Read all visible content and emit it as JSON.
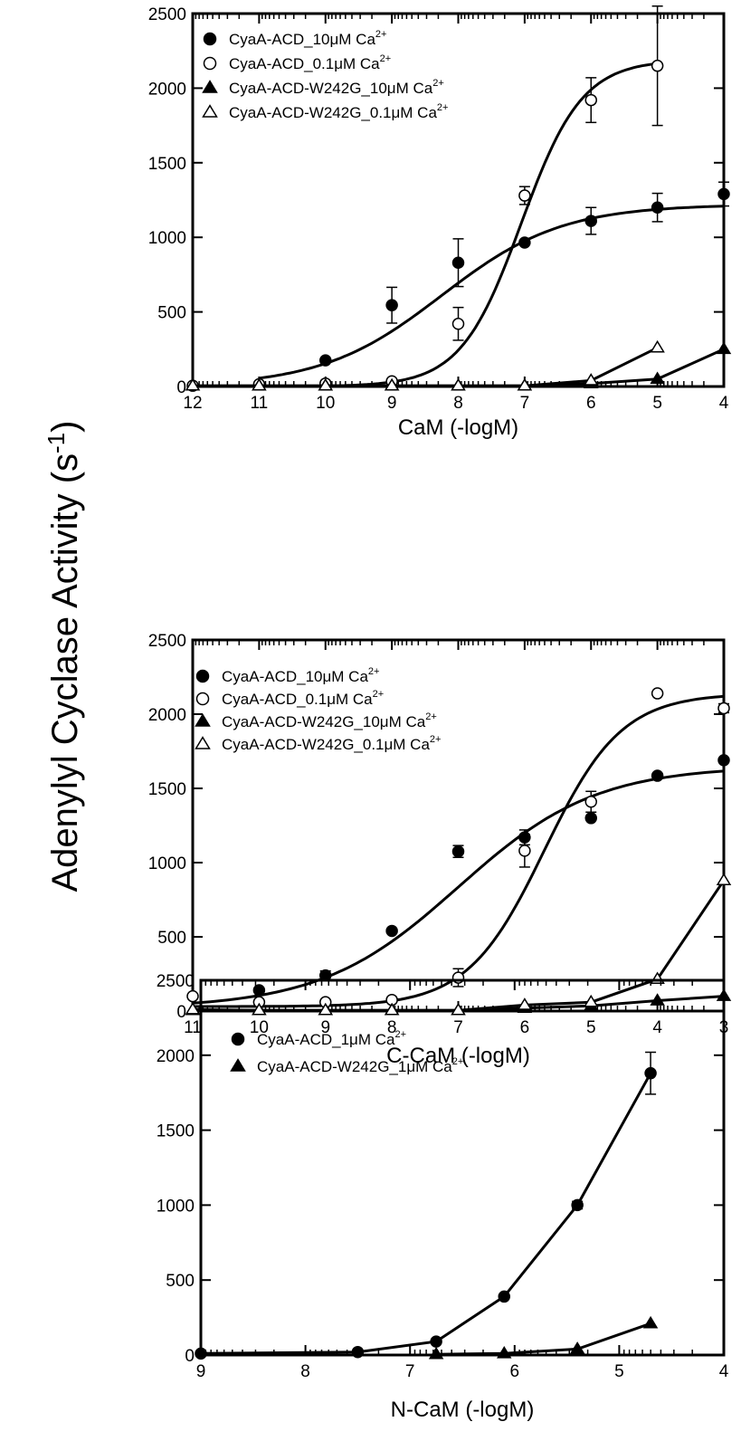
{
  "ylabel": "Adenylyl Cyclase Activity (s",
  "ylabel_sup": "-1",
  "ylabel_close": ")",
  "chart_data": [
    {
      "type": "scatter",
      "xlabel": "CaM (-logM)",
      "ylabel": "Adenylyl Cyclase Activity (s-1)",
      "xlim": [
        12,
        4
      ],
      "ylim": [
        0,
        2500
      ],
      "x_ticks": [
        12,
        11,
        10,
        9,
        8,
        7,
        6,
        5,
        4
      ],
      "y_ticks": [
        0,
        500,
        1000,
        1500,
        2000,
        2500
      ],
      "legend_position": "top-left",
      "series": [
        {
          "name": "CyaA-ACD_10μM Ca",
          "name_sup": "2+",
          "marker": "filled-circle",
          "x": [
            10,
            9,
            8,
            7,
            6,
            5,
            4
          ],
          "y": [
            175,
            545,
            830,
            965,
            1110,
            1200,
            1290
          ],
          "err": [
            0,
            120,
            160,
            0,
            90,
            95,
            80
          ],
          "fit": "sigmoid",
          "fit_range": [
            11,
            4
          ],
          "fit_params": {
            "bottom": 0,
            "top": 1220,
            "ec50": 8.25,
            "slope": 0.48
          }
        },
        {
          "name": "CyaA-ACD_0.1μM Ca",
          "name_sup": "2+",
          "marker": "open-circle",
          "x": [
            12,
            11,
            10,
            9,
            8,
            7,
            6,
            5
          ],
          "y": [
            5,
            15,
            20,
            35,
            420,
            1280,
            1920,
            2150
          ],
          "err": [
            0,
            0,
            0,
            0,
            110,
            60,
            150,
            400
          ],
          "fit": "sigmoid",
          "fit_range": [
            12,
            5
          ],
          "fit_params": {
            "bottom": 0,
            "top": 2190,
            "ec50": 7.05,
            "slope": 0.95
          }
        },
        {
          "name": "CyaA-ACD-W242G_10μM Ca",
          "name_sup": "2+",
          "marker": "filled-triangle",
          "x": [
            12,
            11,
            10,
            9,
            8,
            7,
            6,
            5,
            4
          ],
          "y": [
            5,
            5,
            5,
            5,
            5,
            5,
            20,
            50,
            250
          ],
          "err": [
            0,
            0,
            0,
            0,
            0,
            0,
            0,
            0,
            0
          ],
          "fit": "line"
        },
        {
          "name": "CyaA-ACD-W242G_0.1μM Ca",
          "name_sup": "2+",
          "marker": "open-triangle",
          "x": [
            12,
            11,
            10,
            9,
            8,
            7,
            6,
            5
          ],
          "y": [
            5,
            5,
            5,
            5,
            5,
            5,
            40,
            260
          ],
          "err": [
            0,
            0,
            0,
            0,
            0,
            0,
            0,
            0
          ],
          "fit": "line"
        }
      ]
    },
    {
      "type": "scatter",
      "xlabel": "C-CaM (-logM)",
      "ylabel": "Adenylyl Cyclase Activity (s-1)",
      "xlim": [
        11,
        3
      ],
      "ylim": [
        0,
        2500
      ],
      "x_ticks": [
        11,
        10,
        9,
        8,
        7,
        6,
        5,
        4,
        3
      ],
      "y_ticks": [
        0,
        500,
        1000,
        1500,
        2000,
        2500
      ],
      "legend_position": "top-left",
      "series": [
        {
          "name": "CyaA-ACD_10μM Ca",
          "name_sup": "2+",
          "marker": "filled-circle",
          "x": [
            10,
            9,
            8,
            7,
            6,
            5,
            4,
            3
          ],
          "y": [
            140,
            240,
            540,
            1075,
            1170,
            1300,
            1585,
            1690
          ],
          "err": [
            0,
            30,
            0,
            40,
            50,
            0,
            0,
            0
          ],
          "fit": "sigmoid",
          "fit_range": [
            11,
            3
          ],
          "fit_params": {
            "bottom": 20,
            "top": 1650,
            "ec50": 7.0,
            "slope": 0.42
          }
        },
        {
          "name": "CyaA-ACD_0.1μM Ca",
          "name_sup": "2+",
          "marker": "open-circle",
          "x": [
            11,
            10,
            9,
            8,
            7,
            6,
            5,
            4,
            3
          ],
          "y": [
            100,
            60,
            60,
            75,
            225,
            1080,
            1410,
            2140,
            2040
          ],
          "err": [
            0,
            0,
            0,
            0,
            60,
            110,
            70,
            0,
            30
          ],
          "fit": "sigmoid",
          "fit_range": [
            11,
            3
          ],
          "fit_params": {
            "bottom": 30,
            "top": 2140,
            "ec50": 5.7,
            "slope": 0.75
          }
        },
        {
          "name": "CyaA-ACD-W242G_10μM Ca",
          "name_sup": "2+",
          "marker": "filled-triangle",
          "x": [
            11,
            10,
            9,
            8,
            7,
            6,
            5,
            4,
            3
          ],
          "y": [
            5,
            5,
            5,
            5,
            5,
            20,
            35,
            70,
            100
          ],
          "err": [
            0,
            0,
            0,
            0,
            0,
            0,
            0,
            0,
            0
          ],
          "fit": "line"
        },
        {
          "name": "CyaA-ACD-W242G_0.1μM Ca",
          "name_sup": "2+",
          "marker": "open-triangle",
          "x": [
            11,
            10,
            9,
            8,
            7,
            6,
            5,
            4,
            3
          ],
          "y": [
            10,
            5,
            5,
            5,
            5,
            40,
            60,
            215,
            880
          ],
          "err": [
            0,
            0,
            0,
            0,
            0,
            0,
            0,
            0,
            0
          ],
          "fit": "line"
        }
      ]
    },
    {
      "type": "line",
      "xlabel": "N-CaM (-logM)",
      "ylabel": "Adenylyl Cyclase Activity (s-1)",
      "xlim": [
        9,
        4
      ],
      "ylim": [
        0,
        2500
      ],
      "x_ticks": [
        9,
        8,
        7,
        6,
        5,
        4
      ],
      "y_ticks": [
        0,
        500,
        1000,
        1500,
        2000,
        2500
      ],
      "legend_position": "top-left",
      "series": [
        {
          "name": "CyaA-ACD_1μM Ca",
          "name_sup": "2+",
          "marker": "filled-circle",
          "x": [
            9,
            7.5,
            6.75,
            6.1,
            5.4,
            4.7
          ],
          "y": [
            10,
            20,
            90,
            390,
            1000,
            1880
          ],
          "err": [
            0,
            0,
            0,
            0,
            25,
            140
          ],
          "fit": "line"
        },
        {
          "name": "CyaA-ACD-W242G_1μM Ca",
          "name_sup": "2+",
          "marker": "filled-triangle",
          "x": [
            6.75,
            6.1,
            5.4,
            4.7
          ],
          "y": [
            5,
            10,
            40,
            210
          ],
          "err": [
            0,
            0,
            0,
            0
          ],
          "fit": "line"
        }
      ]
    }
  ]
}
